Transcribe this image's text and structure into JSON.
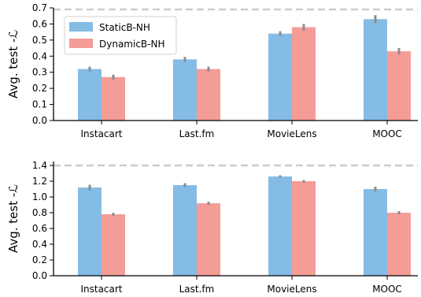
{
  "chart_data": [
    {
      "type": "bar",
      "categories": [
        "Instacart",
        "Last.fm",
        "MovieLens",
        "MOOC"
      ],
      "series": [
        {
          "name": "StaticB-NH",
          "values": [
            0.32,
            0.38,
            0.54,
            0.63
          ],
          "errors": [
            0.015,
            0.015,
            0.015,
            0.025
          ],
          "color": "#85BCE5"
        },
        {
          "name": "DynamicB-NH",
          "values": [
            0.27,
            0.32,
            0.58,
            0.43
          ],
          "errors": [
            0.015,
            0.015,
            0.02,
            0.02
          ],
          "color": "#F49C96"
        }
      ],
      "reference_line": 0.69,
      "ylabel": "Avg. test -ℒ",
      "ylim": [
        0,
        0.7
      ],
      "yticks": [
        "0.0",
        "0.1",
        "0.2",
        "0.3",
        "0.4",
        "0.5",
        "0.6",
        "0.7"
      ],
      "legend": "top-left"
    },
    {
      "type": "bar",
      "categories": [
        "Instacart",
        "Last.fm",
        "MovieLens",
        "MOOC"
      ],
      "series": [
        {
          "name": "StaticB-NH",
          "values": [
            1.12,
            1.15,
            1.26,
            1.1
          ],
          "errors": [
            0.035,
            0.025,
            0.015,
            0.03
          ],
          "color": "#85BCE5"
        },
        {
          "name": "DynamicB-NH",
          "values": [
            0.78,
            0.92,
            1.2,
            0.8
          ],
          "errors": [
            0.02,
            0.02,
            0.015,
            0.02
          ],
          "color": "#F49C96"
        }
      ],
      "reference_line": 1.4,
      "ylabel": "Avg. test -ℒ",
      "ylim": [
        0,
        1.45
      ],
      "yticks": [
        "0.0",
        "0.2",
        "0.4",
        "0.6",
        "0.8",
        "1.0",
        "1.2",
        "1.4"
      ]
    }
  ]
}
